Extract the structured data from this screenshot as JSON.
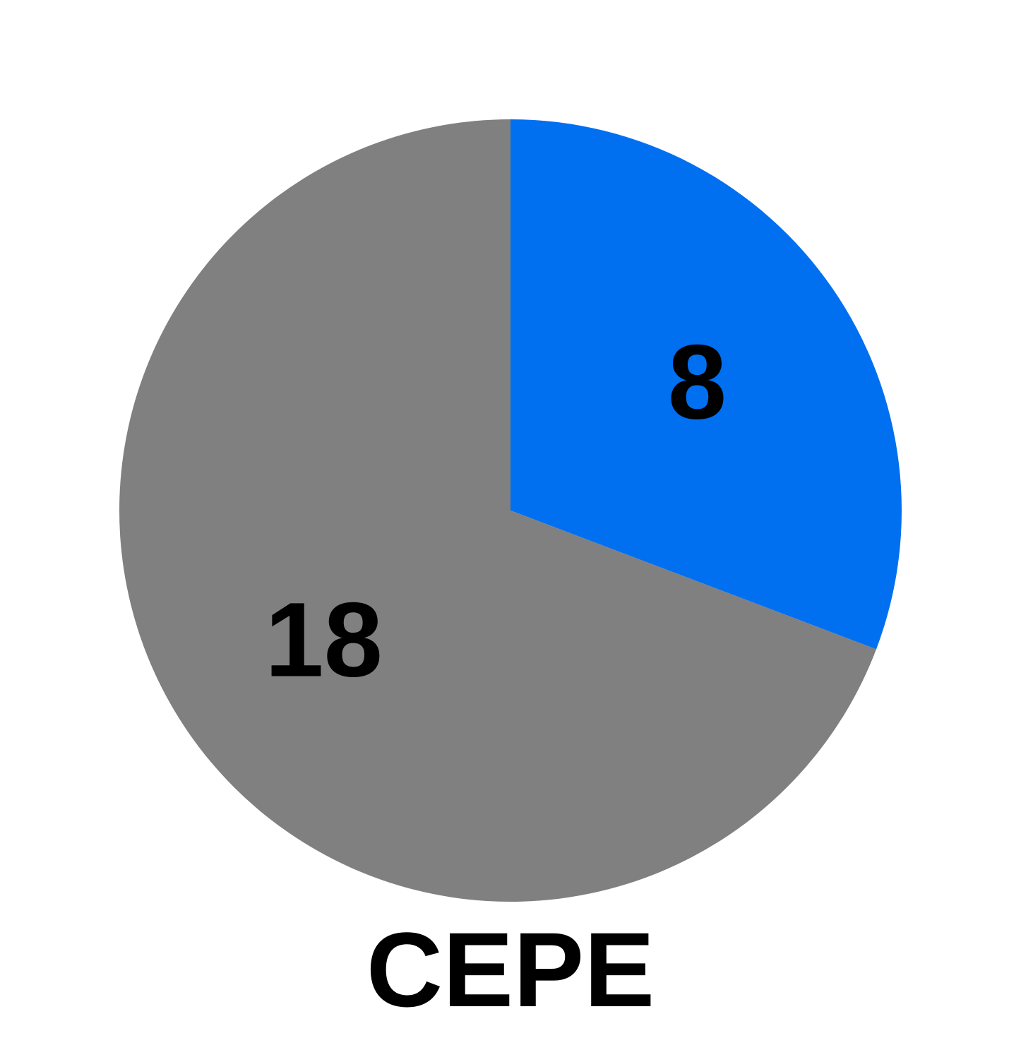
{
  "chart_data": {
    "type": "pie",
    "title": "CEPE",
    "start_angle": "12 o'clock",
    "direction": "clockwise",
    "slices": [
      {
        "label": "8",
        "value": 8,
        "color": "#0070f0"
      },
      {
        "label": "18",
        "value": 18,
        "color": "#808080"
      }
    ],
    "legend": "none"
  }
}
